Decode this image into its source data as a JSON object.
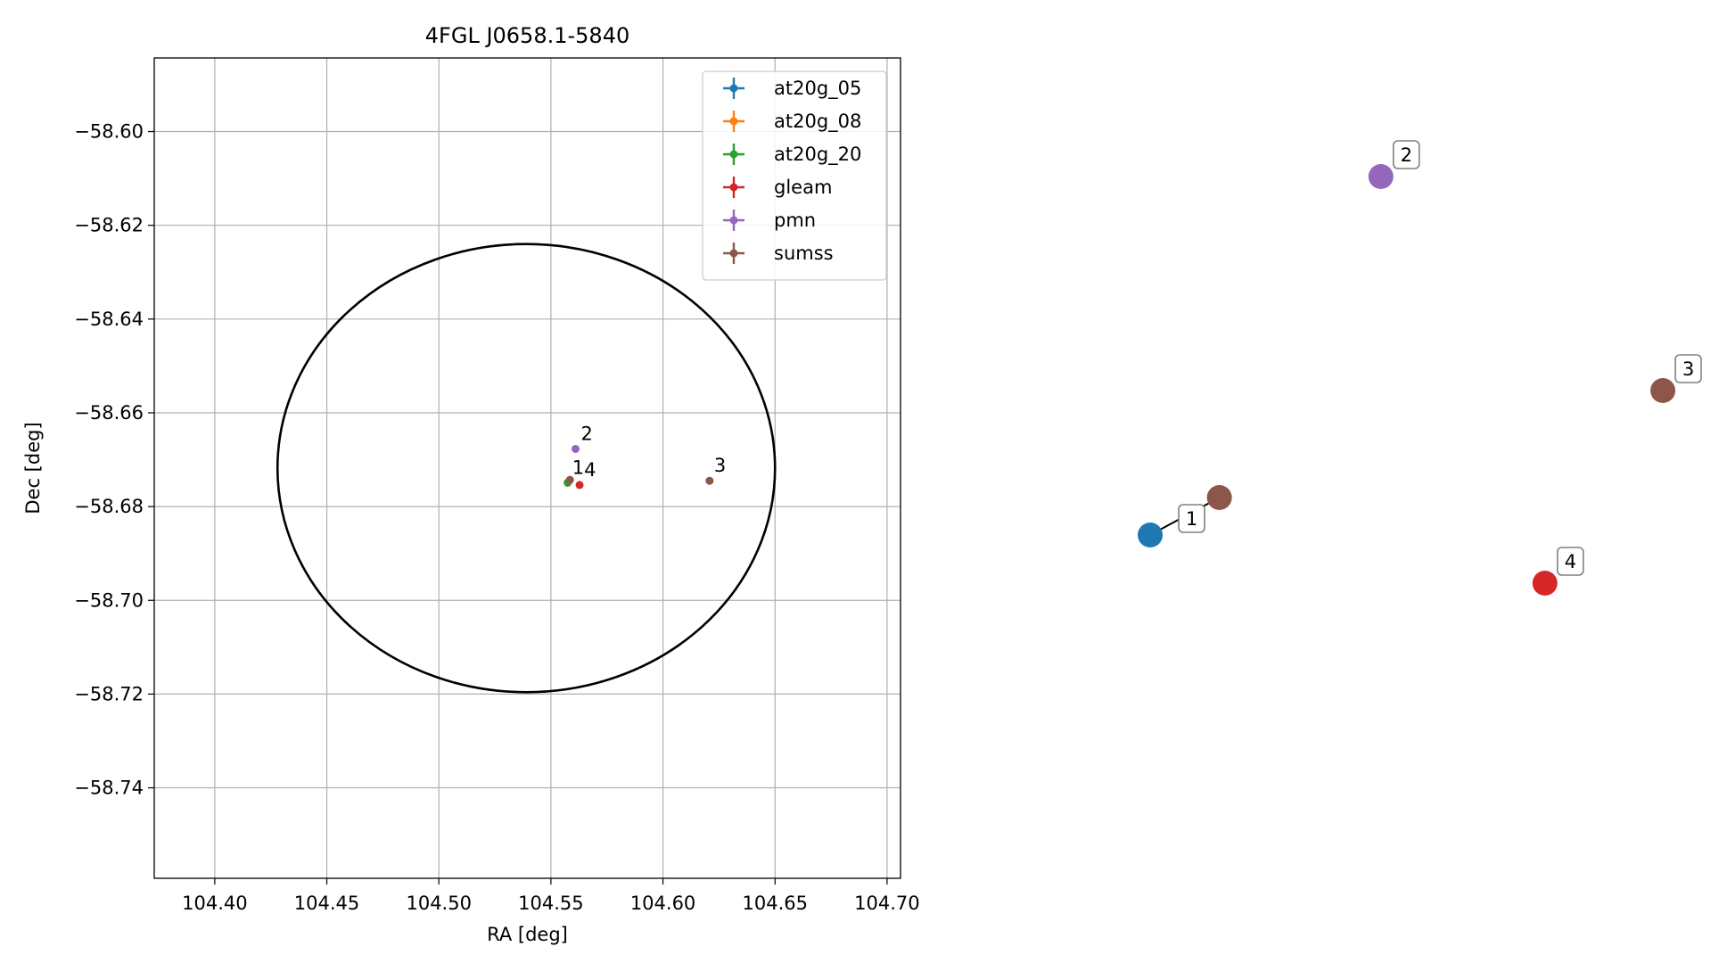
{
  "chart_data": [
    {
      "type": "scatter",
      "title": "4FGL J0658.1-5840",
      "xlabel": "RA [deg]",
      "ylabel": "Dec [deg]",
      "xlim": [
        104.373,
        104.706
      ],
      "ylim": [
        -58.7593,
        -58.5843
      ],
      "xticks": [
        104.4,
        104.45,
        104.5,
        104.55,
        104.6,
        104.65,
        104.7
      ],
      "xtick_labels": [
        "104.40",
        "104.45",
        "104.50",
        "104.55",
        "104.60",
        "104.65",
        "104.70"
      ],
      "yticks": [
        -58.6,
        -58.62,
        -58.64,
        -58.66,
        -58.68,
        -58.7,
        -58.72,
        -58.74
      ],
      "ytick_labels": [
        "−58.60",
        "−58.62",
        "−58.64",
        "−58.66",
        "−58.68",
        "−58.70",
        "−58.72",
        "−58.74"
      ],
      "grid": true,
      "legend_position": "top-right",
      "ellipse": {
        "center": [
          104.539,
          -58.6718
        ],
        "ra_radius": 0.111,
        "dec_radius": 0.0478,
        "color": "#000000"
      },
      "series": [
        {
          "name": "at20g_05",
          "color": "#1f77b4",
          "points": [
            [
              104.5575,
              -58.6749
            ]
          ]
        },
        {
          "name": "at20g_08",
          "color": "#ff7f0e",
          "points": [
            [
              104.5575,
              -58.6749
            ]
          ]
        },
        {
          "name": "at20g_20",
          "color": "#2ca02c",
          "points": [
            [
              104.5575,
              -58.6749
            ]
          ]
        },
        {
          "name": "gleam",
          "color": "#d62728",
          "points": [
            [
              104.5628,
              -58.6754
            ]
          ]
        },
        {
          "name": "pmn",
          "color": "#9467bd",
          "points": [
            [
              104.561,
              -58.6677
            ]
          ]
        },
        {
          "name": "sumss",
          "color": "#8c564b",
          "points": [
            [
              104.5585,
              -58.6743
            ],
            [
              104.6208,
              -58.6745
            ]
          ]
        }
      ],
      "annotations": [
        {
          "text": "1",
          "x": 104.5575,
          "y": -58.6749
        },
        {
          "text": "2",
          "x": 104.561,
          "y": -58.6677
        },
        {
          "text": "3",
          "x": 104.6208,
          "y": -58.6745
        },
        {
          "text": "4",
          "x": 104.5628,
          "y": -58.6754
        }
      ]
    },
    {
      "type": "diagram",
      "nodes": [
        {
          "id": "at20g",
          "color": "#1f77b4",
          "rx": 0.0,
          "ry": 0.0
        },
        {
          "id": "sumss1",
          "color": "#8c564b",
          "rx": 0.135,
          "ry": 0.07
        },
        {
          "id": "pmn",
          "color": "#9467bd",
          "rx": 0.45,
          "ry": 0.67
        },
        {
          "id": "sumss3",
          "color": "#8c564b",
          "rx": 1.0,
          "ry": 0.27
        },
        {
          "id": "gleam",
          "color": "#d62728",
          "rx": 0.77,
          "ry": -0.09
        }
      ],
      "edges": [
        [
          "at20g",
          "sumss1"
        ]
      ],
      "labels": [
        {
          "text": "1",
          "node": "at20g"
        },
        {
          "text": "2",
          "node": "pmn"
        },
        {
          "text": "3",
          "node": "sumss3"
        },
        {
          "text": "4",
          "node": "gleam"
        }
      ]
    }
  ]
}
